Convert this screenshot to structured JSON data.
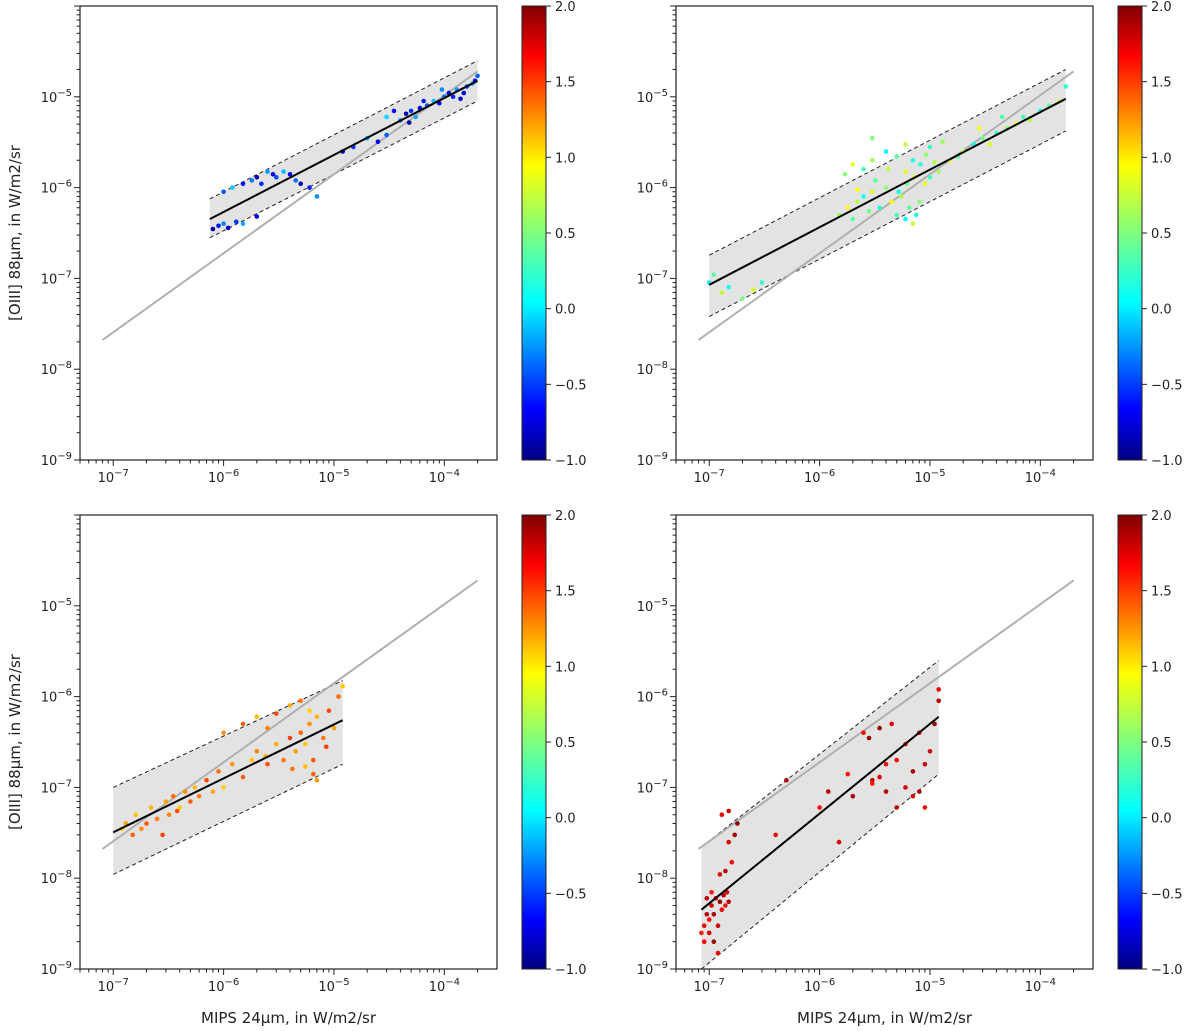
{
  "chart_data": [
    {
      "type": "scatter",
      "xlabel": "",
      "ylabel": "[OIII] 88µm, in W/m2/sr",
      "xscale": "log",
      "yscale": "log",
      "xlim": [
        5e-08,
        0.0003
      ],
      "ylim": [
        1e-09,
        0.0001
      ],
      "x_ticks": [
        "10^-7",
        "10^-6",
        "10^-5",
        "10^-4"
      ],
      "y_ticks": [
        "10^-9",
        "10^-8",
        "10^-7",
        "10^-6",
        "10^-5"
      ],
      "colorbar": {
        "min": -1.0,
        "max": 2.0,
        "colormap": "jet",
        "ticks": [
          "-1.0",
          "-0.5",
          "0.0",
          "0.5",
          "1.0",
          "1.5",
          "2.0"
        ]
      },
      "reference_line": {
        "color": "#b0b0b0",
        "x": [
          8e-08,
          0.0002
        ],
        "y": [
          2.1e-08,
          1.9e-05
        ]
      },
      "fit_line": {
        "color": "#000000",
        "x": [
          7.5e-07,
          0.0002
        ],
        "y": [
          4.5e-07,
          1.5e-05
        ]
      },
      "band": {
        "x": [
          7.5e-07,
          0.0002
        ],
        "upper": [
          7.5e-07,
          2.5e-05
        ],
        "lower": [
          2.8e-07,
          9e-06
        ]
      },
      "color_value_range": [
        -0.9,
        0.0
      ],
      "points": [
        [
          8e-07,
          3.5e-07
        ],
        [
          9e-07,
          3.8e-07
        ],
        [
          1e-06,
          4e-07
        ],
        [
          1.1e-06,
          3.6e-07
        ],
        [
          1.3e-06,
          4.2e-07
        ],
        [
          1.5e-06,
          4e-07
        ],
        [
          2e-06,
          4.8e-07
        ],
        [
          1e-06,
          9e-07
        ],
        [
          1.2e-06,
          1e-06
        ],
        [
          1.5e-06,
          1.1e-06
        ],
        [
          1.8e-06,
          1.2e-06
        ],
        [
          2e-06,
          1.3e-06
        ],
        [
          2.2e-06,
          1.1e-06
        ],
        [
          2.5e-06,
          1.5e-06
        ],
        [
          2.8e-06,
          1.4e-06
        ],
        [
          3e-06,
          1.3e-06
        ],
        [
          3.5e-06,
          1.5e-06
        ],
        [
          4e-06,
          1.4e-06
        ],
        [
          4.5e-06,
          1.2e-06
        ],
        [
          5e-06,
          1.1e-06
        ],
        [
          6e-06,
          1e-06
        ],
        [
          7e-06,
          8e-07
        ],
        [
          1.2e-05,
          2.5e-06
        ],
        [
          1.5e-05,
          2.8e-06
        ],
        [
          2e-05,
          3.5e-06
        ],
        [
          2.5e-05,
          3.2e-06
        ],
        [
          3e-05,
          3.8e-06
        ],
        [
          3e-05,
          6e-06
        ],
        [
          3.5e-05,
          7e-06
        ],
        [
          4e-05,
          5.5e-06
        ],
        [
          4.5e-05,
          6.5e-06
        ],
        [
          5e-05,
          7e-06
        ],
        [
          5.5e-05,
          6e-06
        ],
        [
          6e-05,
          7.5e-06
        ],
        [
          7e-05,
          8e-06
        ],
        [
          8e-05,
          9e-06
        ],
        [
          9e-05,
          8.5e-06
        ],
        [
          0.0001,
          1e-05
        ],
        [
          0.00011,
          1.1e-05
        ],
        [
          0.00012,
          1e-05
        ],
        [
          0.00013,
          1.2e-05
        ],
        [
          0.00015,
          1.1e-05
        ],
        [
          0.00016,
          1.3e-05
        ],
        [
          0.00018,
          1.4e-05
        ],
        [
          0.00019,
          1.5e-05
        ],
        [
          0.0002,
          1.7e-05
        ],
        [
          4.8e-05,
          5.2e-06
        ],
        [
          6.5e-05,
          9e-06
        ],
        [
          9.5e-05,
          1.2e-05
        ],
        [
          0.00014,
          9.5e-06
        ]
      ]
    },
    {
      "type": "scatter",
      "xlabel": "",
      "ylabel": "",
      "xscale": "log",
      "yscale": "log",
      "xlim": [
        5e-08,
        0.0003
      ],
      "ylim": [
        1e-09,
        0.0001
      ],
      "x_ticks": [
        "10^-7",
        "10^-6",
        "10^-5",
        "10^-4"
      ],
      "y_ticks": [
        "10^-9",
        "10^-8",
        "10^-7",
        "10^-6",
        "10^-5"
      ],
      "colorbar": {
        "min": -1.0,
        "max": 2.0,
        "colormap": "jet",
        "ticks": [
          "-1.0",
          "-0.5",
          "0.0",
          "0.5",
          "1.0",
          "1.5",
          "2.0"
        ]
      },
      "reference_line": {
        "color": "#b0b0b0",
        "x": [
          8e-08,
          0.0002
        ],
        "y": [
          2.1e-08,
          1.9e-05
        ]
      },
      "fit_line": {
        "color": "#000000",
        "x": [
          1e-07,
          0.00017
        ],
        "y": [
          8.5e-08,
          9.5e-06
        ]
      },
      "band": {
        "x": [
          1e-07,
          0.00017
        ],
        "upper": [
          1.8e-07,
          2e-05
        ],
        "lower": [
          3.8e-08,
          4.2e-06
        ]
      },
      "color_value_range": [
        0.1,
        0.9
      ],
      "points": [
        [
          1e-07,
          9e-08
        ],
        [
          1.1e-07,
          1.1e-07
        ],
        [
          1.3e-07,
          7e-08
        ],
        [
          1.5e-07,
          8e-08
        ],
        [
          2e-07,
          6e-08
        ],
        [
          2.5e-07,
          7.5e-08
        ],
        [
          3e-07,
          9e-08
        ],
        [
          1.5e-06,
          5e-07
        ],
        [
          1.8e-06,
          6e-07
        ],
        [
          2e-06,
          4.5e-07
        ],
        [
          2.2e-06,
          7e-07
        ],
        [
          2.5e-06,
          8e-07
        ],
        [
          2.8e-06,
          5.5e-07
        ],
        [
          3e-06,
          9e-07
        ],
        [
          3.5e-06,
          6e-07
        ],
        [
          4e-06,
          1e-06
        ],
        [
          4.5e-06,
          7e-07
        ],
        [
          5e-06,
          5e-07
        ],
        [
          5.5e-06,
          8e-07
        ],
        [
          6e-06,
          4.5e-07
        ],
        [
          6.5e-06,
          6e-07
        ],
        [
          7e-06,
          4e-07
        ],
        [
          7.5e-06,
          5e-07
        ],
        [
          8e-06,
          7e-07
        ],
        [
          9e-06,
          1.1e-06
        ],
        [
          1e-05,
          1.3e-06
        ],
        [
          1.2e-05,
          1.5e-06
        ],
        [
          1.5e-05,
          2e-06
        ],
        [
          1.8e-05,
          2.2e-06
        ],
        [
          2e-05,
          2.5e-06
        ],
        [
          2.5e-05,
          3e-06
        ],
        [
          3e-05,
          3.5e-06
        ],
        [
          3.5e-05,
          3e-06
        ],
        [
          4e-05,
          4e-06
        ],
        [
          5e-05,
          4.5e-06
        ],
        [
          6e-05,
          5e-06
        ],
        [
          7e-05,
          6e-06
        ],
        [
          8e-05,
          5.5e-06
        ],
        [
          0.0001,
          7e-06
        ],
        [
          0.00012,
          8e-06
        ],
        [
          0.00015,
          9e-06
        ],
        [
          0.00017,
          1.3e-05
        ],
        [
          1.7e-06,
          1.4e-06
        ],
        [
          2e-06,
          1.8e-06
        ],
        [
          2.5e-06,
          1.6e-06
        ],
        [
          3e-06,
          2e-06
        ],
        [
          4e-06,
          2.5e-06
        ],
        [
          5e-06,
          2.2e-06
        ],
        [
          6e-06,
          3e-06
        ],
        [
          7e-06,
          2e-06
        ],
        [
          3e-06,
          3.5e-06
        ],
        [
          6e-06,
          1.5e-06
        ],
        [
          1e-05,
          2.8e-06
        ],
        [
          1.3e-05,
          3.2e-06
        ],
        [
          2.2e-06,
          9.5e-07
        ],
        [
          3.2e-06,
          1.2e-06
        ],
        [
          4.2e-06,
          1.6e-06
        ],
        [
          5.2e-06,
          9e-07
        ],
        [
          6.2e-06,
          1.1e-06
        ],
        [
          7.2e-06,
          1.3e-06
        ],
        [
          8.2e-06,
          1.8e-06
        ],
        [
          9.2e-06,
          2.3e-06
        ],
        [
          2.8e-05,
          4.5e-06
        ],
        [
          4.5e-05,
          6e-06
        ],
        [
          1.1e-05,
          1.9e-06
        ]
      ]
    },
    {
      "type": "scatter",
      "xlabel": "MIPS 24µm, in W/m2/sr",
      "ylabel": "[OIII] 88µm, in W/m2/sr",
      "xscale": "log",
      "yscale": "log",
      "xlim": [
        5e-08,
        0.0003
      ],
      "ylim": [
        1e-09,
        0.0001
      ],
      "x_ticks": [
        "10^-7",
        "10^-6",
        "10^-5",
        "10^-4"
      ],
      "y_ticks": [
        "10^-9",
        "10^-8",
        "10^-7",
        "10^-6",
        "10^-5"
      ],
      "colorbar": {
        "min": -1.0,
        "max": 2.0,
        "colormap": "jet",
        "ticks": [
          "-1.0",
          "-0.5",
          "0.0",
          "0.5",
          "1.0",
          "1.5",
          "2.0"
        ]
      },
      "reference_line": {
        "color": "#b0b0b0",
        "x": [
          8e-08,
          0.0002
        ],
        "y": [
          2.1e-08,
          1.9e-05
        ]
      },
      "fit_line": {
        "color": "#000000",
        "x": [
          1e-07,
          1.2e-05
        ],
        "y": [
          3.2e-08,
          5.5e-07
        ]
      },
      "band": {
        "x": [
          1e-07,
          1.2e-05
        ],
        "upper": [
          1e-07,
          1.5e-06
        ],
        "lower": [
          1.1e-08,
          1.8e-07
        ]
      },
      "color_value_range": [
        1.0,
        1.45
      ],
      "points": [
        [
          1.2e-07,
          3.5e-08
        ],
        [
          1.3e-07,
          4e-08
        ],
        [
          1.5e-07,
          3e-08
        ],
        [
          1.6e-07,
          5e-08
        ],
        [
          1.8e-07,
          3.5e-08
        ],
        [
          2e-07,
          4e-08
        ],
        [
          2.2e-07,
          6e-08
        ],
        [
          2.5e-07,
          4.5e-08
        ],
        [
          2.8e-07,
          3e-08
        ],
        [
          3e-07,
          7e-08
        ],
        [
          3.5e-07,
          8e-08
        ],
        [
          4e-07,
          6e-08
        ],
        [
          4.5e-07,
          9e-08
        ],
        [
          5e-07,
          7e-08
        ],
        [
          5.5e-07,
          1e-07
        ],
        [
          6e-07,
          8e-08
        ],
        [
          7e-07,
          1.2e-07
        ],
        [
          8e-07,
          9e-08
        ],
        [
          9e-07,
          1.5e-07
        ],
        [
          1e-06,
          1e-07
        ],
        [
          1.2e-06,
          1.8e-07
        ],
        [
          1.5e-06,
          1.3e-07
        ],
        [
          1.8e-06,
          2e-07
        ],
        [
          2e-06,
          2.5e-07
        ],
        [
          2.5e-06,
          1.8e-07
        ],
        [
          3e-06,
          3e-07
        ],
        [
          3.5e-06,
          2e-07
        ],
        [
          4e-06,
          3.5e-07
        ],
        [
          4.5e-06,
          2.5e-07
        ],
        [
          5e-06,
          4e-07
        ],
        [
          5.5e-06,
          3e-07
        ],
        [
          6e-06,
          5e-07
        ],
        [
          6.5e-06,
          2e-07
        ],
        [
          7e-06,
          6e-07
        ],
        [
          8e-06,
          3.5e-07
        ],
        [
          9e-06,
          7e-07
        ],
        [
          1e-05,
          4.5e-07
        ],
        [
          1.1e-05,
          1e-06
        ],
        [
          1.2e-05,
          1.3e-06
        ],
        [
          1e-06,
          4e-07
        ],
        [
          1.5e-06,
          5e-07
        ],
        [
          2e-06,
          6e-07
        ],
        [
          2.5e-06,
          4.5e-07
        ],
        [
          3e-06,
          6.5e-07
        ],
        [
          4e-06,
          8e-07
        ],
        [
          5e-06,
          9e-07
        ],
        [
          6e-06,
          7e-07
        ],
        [
          7e-06,
          1.2e-07
        ],
        [
          6.5e-06,
          1.4e-07
        ],
        [
          5.5e-06,
          1.7e-07
        ],
        [
          3.2e-07,
          5e-08
        ],
        [
          3.8e-07,
          5.5e-08
        ],
        [
          2.4e-06,
          2.2e-07
        ],
        [
          4.2e-06,
          1.6e-07
        ],
        [
          8.5e-06,
          2.8e-07
        ]
      ]
    },
    {
      "type": "scatter",
      "xlabel": "MIPS 24µm, in W/m2/sr",
      "ylabel": "",
      "xscale": "log",
      "yscale": "log",
      "xlim": [
        5e-08,
        0.0003
      ],
      "ylim": [
        1e-09,
        0.0001
      ],
      "x_ticks": [
        "10^-7",
        "10^-6",
        "10^-5",
        "10^-4"
      ],
      "y_ticks": [
        "10^-9",
        "10^-8",
        "10^-7",
        "10^-6",
        "10^-5"
      ],
      "colorbar": {
        "min": -1.0,
        "max": 2.0,
        "colormap": "jet",
        "ticks": [
          "-1.0",
          "-0.5",
          "0.0",
          "0.5",
          "1.0",
          "1.5",
          "2.0"
        ]
      },
      "reference_line": {
        "color": "#b0b0b0",
        "x": [
          8e-08,
          0.0002
        ],
        "y": [
          2.1e-08,
          1.9e-05
        ]
      },
      "fit_line": {
        "color": "#000000",
        "x": [
          8.5e-08,
          1.2e-05
        ],
        "y": [
          4.5e-09,
          6e-07
        ]
      },
      "band": {
        "x": [
          8.5e-08,
          1.2e-05
        ],
        "upper": [
          2.2e-08,
          2.5e-06
        ],
        "lower": [
          1e-09,
          1.4e-07
        ]
      },
      "color_value_range": [
        1.55,
        1.95
      ],
      "points": [
        [
          8.5e-08,
          2.5e-09
        ],
        [
          9e-08,
          3e-09
        ],
        [
          9.5e-08,
          4e-09
        ],
        [
          1e-07,
          3.5e-09
        ],
        [
          1.05e-07,
          5e-09
        ],
        [
          1.1e-07,
          4e-09
        ],
        [
          1.15e-07,
          6e-09
        ],
        [
          1.2e-07,
          3e-09
        ],
        [
          1.25e-07,
          5.5e-09
        ],
        [
          1.3e-07,
          4.5e-09
        ],
        [
          1.35e-07,
          6.5e-09
        ],
        [
          1.4e-07,
          5e-09
        ],
        [
          1.45e-07,
          7e-09
        ],
        [
          1.5e-07,
          5.5e-09
        ],
        [
          9e-08,
          2e-09
        ],
        [
          1e-07,
          2.5e-09
        ],
        [
          1.1e-07,
          2e-09
        ],
        [
          1.2e-07,
          1.5e-09
        ],
        [
          9.5e-08,
          6e-09
        ],
        [
          1.05e-07,
          7e-09
        ],
        [
          1.25e-07,
          1.1e-08
        ],
        [
          1.4e-07,
          1.2e-08
        ],
        [
          1.6e-07,
          1.5e-08
        ],
        [
          1.5e-07,
          2.5e-08
        ],
        [
          1.7e-07,
          3e-08
        ],
        [
          1.3e-07,
          5e-08
        ],
        [
          1.5e-07,
          5.5e-08
        ],
        [
          1.8e-07,
          4e-08
        ],
        [
          4e-07,
          3e-08
        ],
        [
          5e-07,
          1.2e-07
        ],
        [
          1e-06,
          6e-08
        ],
        [
          1.5e-06,
          2.5e-08
        ],
        [
          2e-06,
          8e-08
        ],
        [
          2.5e-06,
          4e-07
        ],
        [
          3e-06,
          1.2e-07
        ],
        [
          3.5e-06,
          4.5e-07
        ],
        [
          4e-06,
          1.8e-07
        ],
        [
          5e-06,
          6e-08
        ],
        [
          6e-06,
          3e-07
        ],
        [
          7e-06,
          8e-08
        ],
        [
          8e-06,
          9e-08
        ],
        [
          9e-06,
          6e-08
        ],
        [
          1e-05,
          2.5e-07
        ],
        [
          1.1e-05,
          5e-07
        ],
        [
          1.2e-05,
          1.2e-06
        ],
        [
          1.2e-05,
          9e-07
        ],
        [
          3e-06,
          1.1e-07
        ],
        [
          3.5e-06,
          1.3e-07
        ],
        [
          4e-06,
          9e-08
        ],
        [
          5e-06,
          2e-07
        ],
        [
          6e-06,
          1e-07
        ],
        [
          7e-06,
          1.5e-07
        ],
        [
          8e-06,
          4e-07
        ],
        [
          9e-06,
          1.8e-07
        ],
        [
          2.8e-06,
          3.5e-07
        ],
        [
          4.5e-06,
          5e-07
        ],
        [
          1.2e-06,
          9e-08
        ],
        [
          1.8e-06,
          1.4e-07
        ]
      ]
    }
  ]
}
